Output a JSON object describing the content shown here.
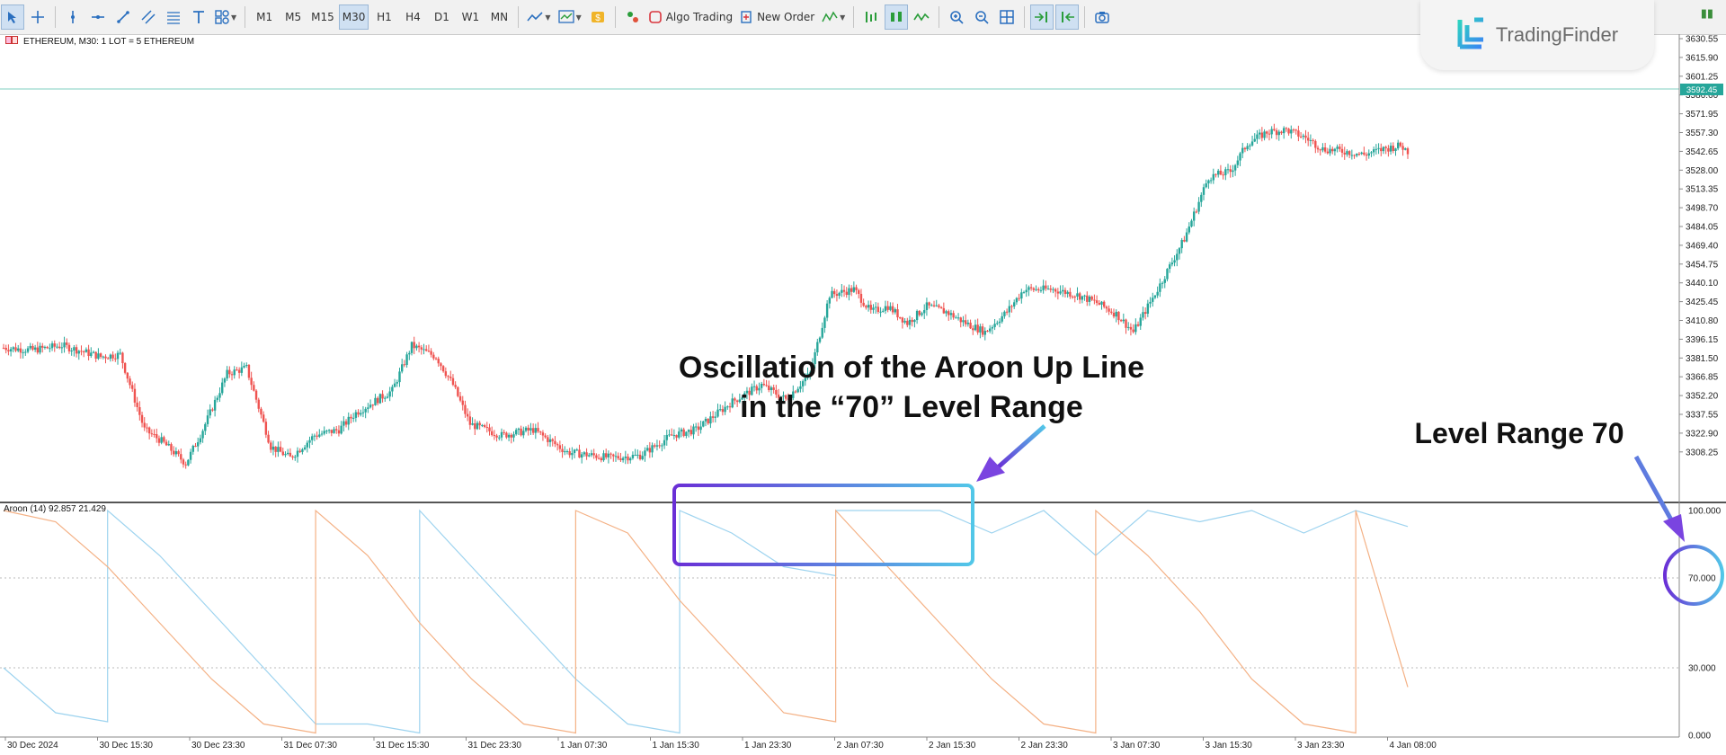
{
  "toolbar": {
    "timeframes": [
      "M1",
      "M5",
      "M15",
      "M30",
      "H1",
      "H4",
      "D1",
      "W1",
      "MN"
    ],
    "active_timeframe": "M30",
    "algo_trading_label": "Algo Trading",
    "new_order_label": "New Order"
  },
  "brand": {
    "name": "TradingFinder"
  },
  "chart": {
    "symbol_info": "ETHEREUM, M30:  1 LOT = 5 ETHEREUM",
    "current_price": "3592.45",
    "price_labels": [
      "3630.55",
      "3615.90",
      "3601.25",
      "3586.60",
      "3571.95",
      "3557.30",
      "3542.65",
      "3528.00",
      "3513.35",
      "3498.70",
      "3484.05",
      "3469.40",
      "3454.75",
      "3440.10",
      "3425.45",
      "3410.80",
      "3396.15",
      "3381.50",
      "3366.85",
      "3352.20",
      "3337.55",
      "3322.90",
      "3308.25"
    ],
    "time_labels": [
      "30 Dec 2024",
      "30 Dec 15:30",
      "30 Dec 23:30",
      "31 Dec 07:30",
      "31 Dec 15:30",
      "31 Dec 23:30",
      "1 Jan 07:30",
      "1 Jan 15:30",
      "1 Jan 23:30",
      "2 Jan 07:30",
      "2 Jan 15:30",
      "2 Jan 23:30",
      "3 Jan 07:30",
      "3 Jan 15:30",
      "3 Jan 23:30",
      "4 Jan 08:00"
    ],
    "colors": {
      "bull": "#26a69a",
      "bear": "#ef5350",
      "aroon_up": "#9dd3ef",
      "aroon_down": "#f4b185",
      "price_line": "#7fcfc1"
    }
  },
  "aroon": {
    "info": "Aroon (14) 92.857 21.429",
    "levels": [
      "100.000",
      "70.000",
      "30.000",
      "0.000"
    ]
  },
  "chart_data": {
    "type": "line",
    "aroon_up_approx": [
      30,
      10,
      100,
      80,
      55,
      30,
      5,
      5,
      100,
      75,
      50,
      25,
      5,
      100,
      90,
      75,
      100,
      100,
      100,
      90,
      100,
      80,
      100,
      95,
      100,
      90,
      100,
      92.857
    ],
    "aroon_down_approx": [
      100,
      95,
      75,
      50,
      25,
      5,
      100,
      80,
      50,
      25,
      5,
      100,
      90,
      60,
      35,
      10,
      100,
      75,
      50,
      25,
      5,
      100,
      80,
      55,
      25,
      5,
      100,
      21.429
    ]
  },
  "annotations": {
    "oscillation_line1": "Oscillation of the Aroon Up Line",
    "oscillation_line2": "in the “70” Level Range",
    "level_range": "Level Range 70"
  }
}
